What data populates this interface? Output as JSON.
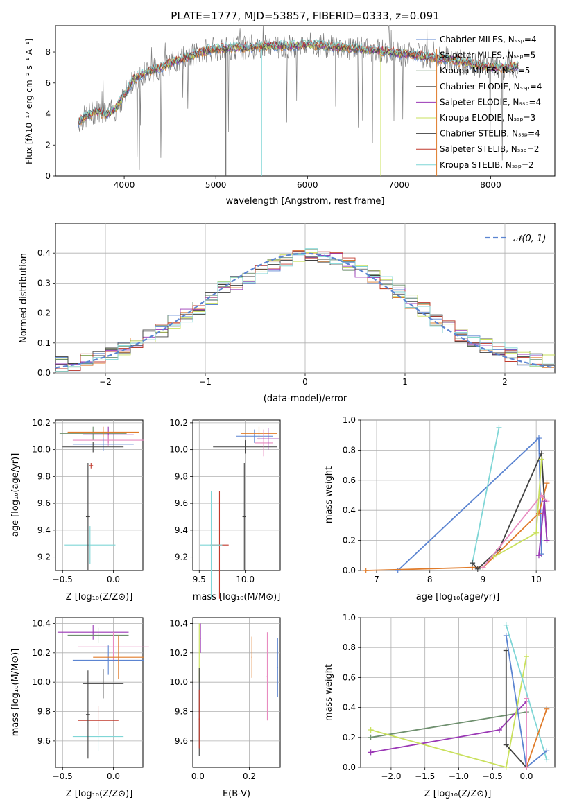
{
  "chart_data": [
    {
      "type": "line",
      "title": "PLATE=1777, MJD=53857, FIBERID=0333, z=0.091",
      "xlabel": "wavelength [Angstrom, rest frame]",
      "ylabel": "Flux [fλ10⁻¹⁷ erg cm⁻² s⁻¹ A⁻¹]",
      "xlim": [
        3250,
        8700
      ],
      "ylim": [
        0,
        9.7
      ],
      "xticks": [
        4000,
        5000,
        6000,
        7000,
        8000
      ],
      "yticks": [
        0,
        2,
        4,
        6,
        8
      ],
      "grid": false,
      "legend_position": "top-right",
      "legend": [
        "Chabrier MILES, N_SSP=4",
        "Salpeter MILES, N_SSP=5",
        "Kroupa MILES, N_SSP=5",
        "Chabrier ELODIE, N_SSP=4",
        "Salpeter ELODIE, N_SSP=4",
        "Kroupa ELODIE, N_SSP=3",
        "Chabrier STELIB, N_SSP=4",
        "Salpeter STELIB, N_SSP=2",
        "Kroupa STELIB, N_SSP=2"
      ],
      "model_colors": [
        "#5b84d1",
        "#e07b2a",
        "#6e8f6e",
        "#555555",
        "#9a37b5",
        "#c9e05c",
        "#404040",
        "#c0392b",
        "#7fd6d6"
      ],
      "spectrum_envelope": {
        "x": [
          3500,
          3600,
          3700,
          3800,
          3900,
          4000,
          4100,
          4200,
          4300,
          4400,
          4500,
          4600,
          4700,
          4800,
          4900,
          5000,
          5200,
          5400,
          5600,
          5800,
          6000,
          6200,
          6400,
          6600,
          6800,
          7000,
          7200,
          7400,
          7600,
          7800,
          8000,
          8200,
          8300
        ],
        "y": [
          3.5,
          3.9,
          4.2,
          4.0,
          4.3,
          5.2,
          6.2,
          6.6,
          6.8,
          7.0,
          7.3,
          7.5,
          7.7,
          7.9,
          8.1,
          8.2,
          8.3,
          8.3,
          8.4,
          8.4,
          8.5,
          8.4,
          8.3,
          8.2,
          8.1,
          7.9,
          7.8,
          7.6,
          7.5,
          7.2,
          7.0,
          7.0,
          7.1
        ]
      }
    },
    {
      "type": "histogram",
      "xlabel": "(data-model)/error",
      "ylabel": "Normed distribution",
      "xlim": [
        -2.5,
        2.5
      ],
      "ylim": [
        0,
        0.5
      ],
      "xticks": [
        -2,
        -1,
        0,
        1,
        2
      ],
      "yticks": [
        0.0,
        0.1,
        0.2,
        0.3,
        0.4
      ],
      "grid": true,
      "legend_position": "top-right",
      "legend": [
        "𝒩(0, 1)"
      ],
      "normal_curve": {
        "mean": 0,
        "sigma": 1,
        "style": "dashed",
        "color": "#5b84d1"
      },
      "histogram_density": [
        0.03,
        0.03,
        0.04,
        0.05,
        0.06,
        0.08,
        0.1,
        0.12,
        0.14,
        0.17,
        0.19,
        0.22,
        0.25,
        0.28,
        0.3,
        0.32,
        0.34,
        0.36,
        0.38,
        0.39,
        0.4,
        0.39,
        0.38,
        0.36,
        0.34,
        0.32,
        0.3,
        0.27,
        0.24,
        0.21,
        0.18,
        0.15,
        0.13,
        0.11,
        0.09,
        0.08,
        0.06,
        0.05,
        0.04,
        0.04
      ]
    },
    {
      "type": "scatter",
      "xlabel": "Z [log₁₀(Z/Z⊙)]",
      "ylabel": "age  [log₁₀(age/yr)]",
      "xlim": [
        -0.57,
        0.29
      ],
      "ylim": [
        9.1,
        10.22
      ],
      "xticks": [
        -0.5,
        0.0
      ],
      "xtick_labels": [
        "−0.5",
        "0.0"
      ],
      "yticks": [
        9.2,
        9.4,
        9.6,
        9.8,
        10.0,
        10.2
      ],
      "grid": true
    },
    {
      "type": "scatter",
      "xlabel": "mass [log₁₀(M/M⊙)]",
      "ylabel": "",
      "xlim": [
        9.43,
        10.38
      ],
      "ylim": [
        9.1,
        10.22
      ],
      "xticks": [
        9.5,
        10.0
      ],
      "xtick_labels": [
        "9.5",
        "10.0"
      ],
      "yticks": [
        9.2,
        9.4,
        9.6,
        9.8,
        10.0,
        10.2
      ],
      "grid": true
    },
    {
      "type": "line",
      "xlabel": "age  [log₁₀(age/yr)]",
      "ylabel": "mass weight",
      "xlim": [
        6.7,
        10.35
      ],
      "ylim": [
        0,
        1.0
      ],
      "xticks": [
        7,
        8,
        9,
        10
      ],
      "yticks": [
        0.0,
        0.2,
        0.4,
        0.6,
        0.8,
        1.0
      ],
      "grid": true,
      "series": [
        {
          "color": "#5b84d1",
          "x": [
            7.4,
            10.05,
            10.1
          ],
          "y": [
            0.0,
            0.88,
            0.11
          ]
        },
        {
          "color": "#e07b2a",
          "x": [
            6.8,
            8.8,
            9.0,
            10.05,
            10.2
          ],
          "y": [
            0.0,
            0.02,
            0.02,
            0.38,
            0.58
          ]
        },
        {
          "color": "#7fd6d6",
          "x": [
            8.8,
            9.3
          ],
          "y": [
            0.05,
            0.95
          ]
        },
        {
          "color": "#404040",
          "x": [
            8.8,
            8.9,
            9.3,
            10.1,
            10.2
          ],
          "y": [
            0.05,
            0.01,
            0.14,
            0.78,
            0.2
          ]
        },
        {
          "color": "#e88bc0",
          "x": [
            9.0,
            10.1,
            10.2
          ],
          "y": [
            0.02,
            0.5,
            0.46
          ]
        },
        {
          "color": "#c9e05c",
          "x": [
            9.2,
            10.0,
            10.1
          ],
          "y": [
            0.09,
            0.25,
            0.74
          ]
        },
        {
          "color": "#9a37b5",
          "x": [
            10.05,
            10.15,
            10.2
          ],
          "y": [
            0.1,
            0.46,
            0.2
          ]
        }
      ]
    },
    {
      "type": "scatter",
      "xlabel": "Z [log₁₀(Z/Z⊙)]",
      "ylabel": "mass [log₁₀(M/M⊙)]",
      "xlim": [
        -0.57,
        0.29
      ],
      "ylim": [
        9.42,
        10.44
      ],
      "xticks": [
        -0.5,
        0.0
      ],
      "xtick_labels": [
        "−0.5",
        "0.0"
      ],
      "yticks": [
        9.6,
        9.8,
        10.0,
        10.2,
        10.4
      ],
      "grid": true
    },
    {
      "type": "scatter",
      "xlabel": "E(B-V)",
      "ylabel": "",
      "xlim": [
        -0.02,
        0.32
      ],
      "ylim": [
        9.42,
        10.44
      ],
      "xticks": [
        0.0,
        0.2
      ],
      "xtick_labels": [
        "0.0",
        "0.2"
      ],
      "yticks": [
        9.6,
        9.8,
        10.0,
        10.2,
        10.4
      ],
      "grid": true
    },
    {
      "type": "line",
      "xlabel": "Z [log₁₀(Z/Z⊙)]",
      "ylabel": "mass weight",
      "xlim": [
        -2.45,
        0.42
      ],
      "ylim": [
        0,
        1.0
      ],
      "xticks": [
        -2.0,
        -1.5,
        -1.0,
        -0.5,
        0.0
      ],
      "xtick_labels": [
        "−2.0",
        "−1.5",
        "−1.0",
        "−0.5",
        "0.0"
      ],
      "yticks": [
        0.0,
        0.2,
        0.4,
        0.6,
        0.8,
        1.0
      ],
      "grid": true,
      "series": [
        {
          "color": "#6e8f6e",
          "x": [
            -2.3,
            0.0
          ],
          "y": [
            0.2,
            0.37
          ]
        },
        {
          "color": "#9a37b5",
          "x": [
            -2.3,
            -0.4,
            0.0
          ],
          "y": [
            0.1,
            0.25,
            0.44
          ]
        },
        {
          "color": "#c9e05c",
          "x": [
            -2.3,
            -0.3,
            0.0
          ],
          "y": [
            0.25,
            0.0,
            0.74
          ]
        },
        {
          "color": "#404040",
          "x": [
            -0.3,
            -0.3,
            0.0
          ],
          "y": [
            0.78,
            0.15,
            0.0
          ]
        },
        {
          "color": "#7fd6d6",
          "x": [
            -0.3,
            0.3
          ],
          "y": [
            0.95,
            0.05
          ]
        },
        {
          "color": "#5b84d1",
          "x": [
            -0.3,
            0.0,
            0.3
          ],
          "y": [
            0.88,
            0.0,
            0.11
          ]
        },
        {
          "color": "#e07b2a",
          "x": [
            0.0,
            0.3
          ],
          "y": [
            0.0,
            0.39
          ]
        },
        {
          "color": "#e88bc0",
          "x": [
            0.0,
            0.0
          ],
          "y": [
            0.0,
            0.46
          ]
        }
      ]
    }
  ]
}
